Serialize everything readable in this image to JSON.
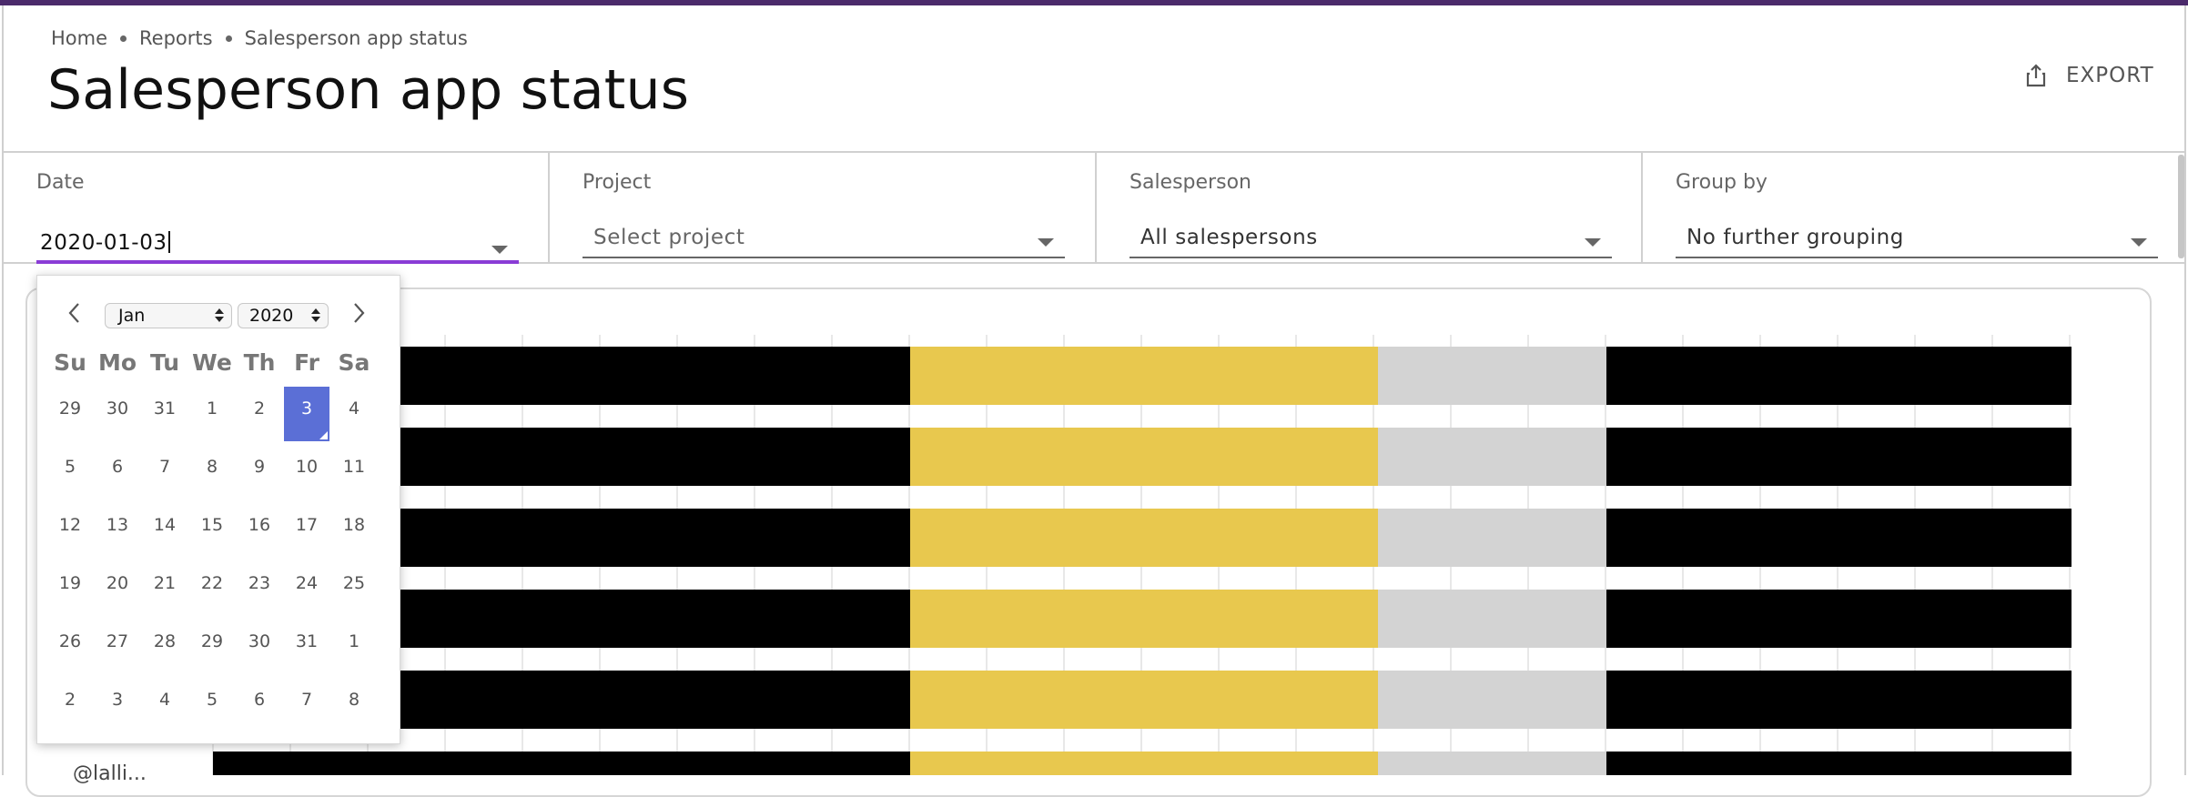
{
  "breadcrumb": [
    "Home",
    "Reports",
    "Salesperson app status"
  ],
  "page_title": "Salesperson app status",
  "export_label": "EXPORT",
  "filters": {
    "date": {
      "label": "Date",
      "value": "2020-01-03"
    },
    "project": {
      "label": "Project",
      "placeholder": "Select project"
    },
    "salesperson": {
      "label": "Salesperson",
      "value": "All salespersons"
    },
    "group_by": {
      "label": "Group by",
      "value": "No further grouping"
    }
  },
  "calendar": {
    "month": "Jan",
    "year": "2020",
    "weekdays": [
      "Su",
      "Mo",
      "Tu",
      "We",
      "Th",
      "Fr",
      "Sa"
    ],
    "weeks": [
      [
        "29",
        "30",
        "31",
        "1",
        "2",
        "3",
        "4"
      ],
      [
        "5",
        "6",
        "7",
        "8",
        "9",
        "10",
        "11"
      ],
      [
        "12",
        "13",
        "14",
        "15",
        "16",
        "17",
        "18"
      ],
      [
        "19",
        "20",
        "21",
        "22",
        "23",
        "24",
        "25"
      ],
      [
        "26",
        "27",
        "28",
        "29",
        "30",
        "31",
        "1"
      ],
      [
        "2",
        "3",
        "4",
        "5",
        "6",
        "7",
        "8"
      ]
    ],
    "selected_day": "3"
  },
  "chart_partial_row_label": "@lalli...",
  "colors": {
    "accent": "#8a3cd6",
    "header_bar": "#4b2a6b",
    "status_black": "#000000",
    "status_yellow": "#e8c84e",
    "status_gray": "#d3d3d3",
    "selected_day": "#5b6fd6"
  }
}
